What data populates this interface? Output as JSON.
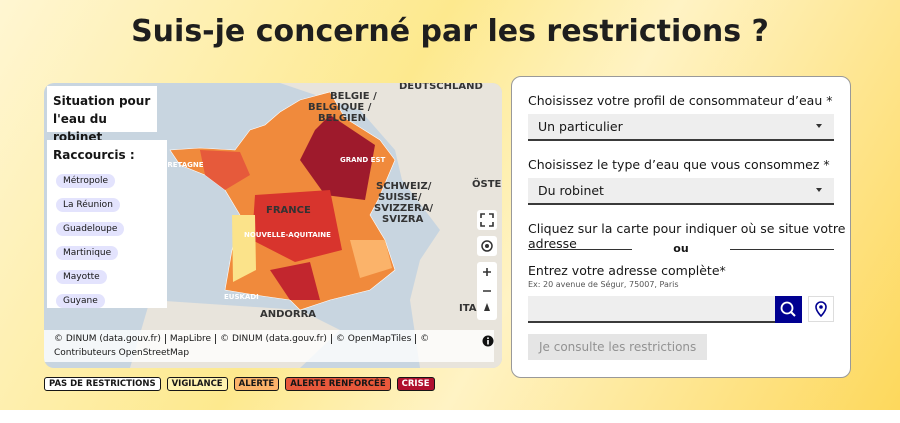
{
  "header": {
    "title": "Suis-je concerné par les restrictions ?"
  },
  "map": {
    "panel_title": "Situation pour l'eau du robinet",
    "shortcuts_title": "Raccourcis :",
    "shortcuts": [
      "Métropole",
      "La Réunion",
      "Guadeloupe",
      "Martinique",
      "Mayotte",
      "Guyane"
    ],
    "labels": [
      "BELGIE /",
      "BELGIQUE /",
      "BELGIEN",
      "DEUTSCHLAND",
      "FRANCE",
      "SCHWEIZ/",
      "SUISSE/",
      "SVIZZERA/",
      "SVIZRA",
      "ÖSTER",
      "ITA",
      "ANDORRA",
      "EUSKADI",
      "BRETAGNE",
      "GRAND EST",
      "NOUVELLE-AQUITAINE"
    ],
    "attribution": [
      "© DINUM (data.gouv.fr)",
      "MapLibre",
      "© DINUM (data.gouv.fr)",
      "© OpenMapTiles",
      "© Contributeurs OpenStreetMap"
    ]
  },
  "legend": [
    {
      "label": "PAS DE RESTRICTIONS",
      "color": "#ffffff",
      "text": "#161616"
    },
    {
      "label": "VIGILANCE",
      "color": "#fff3b0",
      "text": "#161616"
    },
    {
      "label": "ALERTE",
      "color": "#fbb36a",
      "text": "#161616"
    },
    {
      "label": "ALERTE RENFORCÉE",
      "color": "#e8583b",
      "text": "#161616"
    },
    {
      "label": "CRISE",
      "color": "#b0102f",
      "text": "#ffffff"
    }
  ],
  "form": {
    "profile_label": "Choisissez votre profil de consommateur d’eau  *",
    "profile_value": "Un particulier",
    "water_label": "Choisissez le type d’eau que vous consommez  *",
    "water_value": "Du robinet",
    "map_hint": "Cliquez sur la carte pour indiquer où se situe votre adresse",
    "or": "ou",
    "address_label": "Entrez votre adresse complète*",
    "address_hint": "Ex: 20 avenue de Ségur, 75007, Paris",
    "submit": "Je consulte les restrictions"
  }
}
